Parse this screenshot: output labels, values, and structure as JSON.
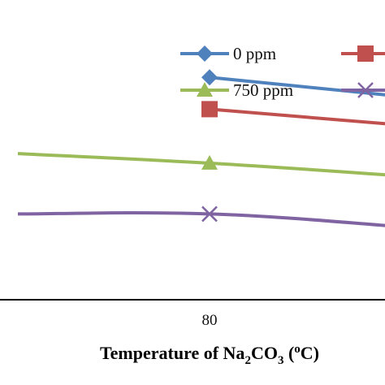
{
  "chart_data": {
    "type": "line",
    "xlabel": {
      "prefix": "Temperature of Na",
      "sub1": "2",
      "mid": "CO",
      "sub2": "3",
      "paren_open": " (",
      "sup": "o",
      "unit": "C)"
    },
    "x_ticks": [
      80
    ],
    "x": [
      70,
      80,
      90
    ],
    "grid": false,
    "legend_position": "top-right",
    "series": [
      {
        "name": "0 ppm",
        "color": "#4f81bd",
        "marker": "diamond",
        "values": [
          null,
          0.7,
          0.64
        ]
      },
      {
        "name": "",
        "color": "#c0504d",
        "marker": "square",
        "values": [
          null,
          0.6,
          0.55
        ]
      },
      {
        "name": "750 ppm",
        "color": "#9bbb59",
        "marker": "triangle",
        "values": [
          0.46,
          0.43,
          0.39
        ]
      },
      {
        "name": "",
        "color": "#8064a2",
        "marker": "x",
        "values": [
          0.27,
          0.27,
          0.23
        ]
      }
    ]
  }
}
